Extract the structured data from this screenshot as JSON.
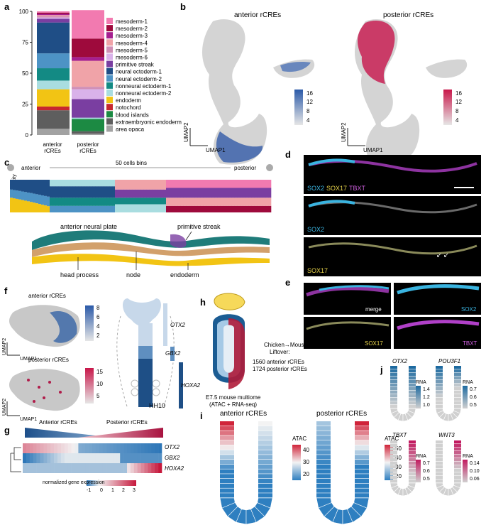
{
  "panels": {
    "a": "a",
    "b": "b",
    "c": "c",
    "d": "d",
    "e": "e",
    "f": "f",
    "g": "g",
    "h": "h",
    "i": "i",
    "j": "j"
  },
  "colors": {
    "mesoderm1": "#f27ab0",
    "mesoderm2": "#9e0a3c",
    "mesoderm3": "#a51f8f",
    "mesoderm4": "#f0a3a8",
    "mesoderm5": "#cf8fb6",
    "mesoderm6": "#d9b2ea",
    "primitive_streak": "#7a3ea1",
    "neural1": "#1f4e86",
    "neural2": "#4d93c5",
    "nonneural1": "#138a84",
    "nonneural2": "#a9dde0",
    "endoderm": "#f2c414",
    "notochord": "#c7272f",
    "blood": "#1c8a43",
    "extraembryonic": "#5e5e5e",
    "area_opaca": "#a2a2a2"
  },
  "chart_data": [
    {
      "type": "bar",
      "stacked": true,
      "categories": [
        "anterior rCREs",
        "posterior rCREs"
      ],
      "ylim": [
        0,
        100
      ],
      "yticks": [
        0,
        25,
        50,
        75,
        100
      ],
      "series": [
        {
          "name": "area opaca",
          "color": "#a2a2a2",
          "values": [
            5,
            1
          ]
        },
        {
          "name": "extraembryonic endoderm",
          "color": "#5e5e5e",
          "values": [
            15,
            2
          ]
        },
        {
          "name": "blood islands",
          "color": "#1c8a43",
          "values": [
            0,
            10
          ]
        },
        {
          "name": "notochord",
          "color": "#c7272f",
          "values": [
            3,
            0
          ]
        },
        {
          "name": "endoderm",
          "color": "#f2c414",
          "values": [
            14,
            0
          ]
        },
        {
          "name": "nonneural ectoderm-2",
          "color": "#a9dde0",
          "values": [
            7,
            1
          ]
        },
        {
          "name": "nonneural ectoderm-1",
          "color": "#138a84",
          "values": [
            10,
            0
          ]
        },
        {
          "name": "neural ectoderm-2",
          "color": "#4d93c5",
          "values": [
            12,
            0
          ]
        },
        {
          "name": "neural ectoderm-1",
          "color": "#1f4e86",
          "values": [
            25,
            0
          ]
        },
        {
          "name": "primitive streak",
          "color": "#7a3ea1",
          "values": [
            3,
            15
          ]
        },
        {
          "name": "mesoderm-6",
          "color": "#d9b2ea",
          "values": [
            1,
            8
          ]
        },
        {
          "name": "mesoderm-5",
          "color": "#cf8fb6",
          "values": [
            1,
            2
          ]
        },
        {
          "name": "mesoderm-4",
          "color": "#f0a3a8",
          "values": [
            1,
            21
          ]
        },
        {
          "name": "mesoderm-3",
          "color": "#a51f8f",
          "values": [
            1,
            3
          ]
        },
        {
          "name": "mesoderm-2",
          "color": "#9e0a3c",
          "values": [
            1,
            15
          ]
        },
        {
          "name": "mesoderm-1",
          "color": "#f27ab0",
          "values": [
            1,
            23
          ]
        }
      ]
    }
  ],
  "legend_a": [
    "mesoderm-1",
    "mesoderm-2",
    "mesoderm-3",
    "mesoderm-4",
    "mesoderm-5",
    "mesoderm-6",
    "primitive streak",
    "neural ectoderm-1",
    "neural ectoderm-2",
    "nonneural ectoderm-1",
    "nonneural ectoderm-2",
    "endoderm",
    "notochord",
    "blood islands",
    "extraembryonic endoderm",
    "area opaca"
  ],
  "xlabels_a": {
    "ant1": "anterior",
    "ant2": "rCREs",
    "post1": "posterior",
    "post2": "rCREs"
  },
  "b": {
    "title_ant": "anterior rCREs",
    "title_post": "posterior rCREs",
    "xlab": "UMAP1",
    "ylab": "UMAP2",
    "ticks_ant": [
      "16",
      "12",
      "8",
      "4"
    ],
    "ticks_post": [
      "16",
      "12",
      "8",
      "4"
    ]
  },
  "c": {
    "anterior": "anterior",
    "posterior": "posterior",
    "bins": "50 cells bins",
    "ylab": "cluster identity",
    "anp": "anterior neural plate",
    "ps": "primitive streak",
    "hp": "head process",
    "node": "node",
    "endo": "endoderm"
  },
  "d": {
    "sox2": "SOX2",
    "sox17": "SOX17",
    "tbxt": "TBXT"
  },
  "e": {
    "merge": "merge",
    "sox2": "SOX2",
    "sox17": "SOX17",
    "tbxt": "TBXT"
  },
  "f": {
    "ant": "anterior rCREs",
    "post": "posterior rCREs",
    "xlab": "UMAP1",
    "ylab": "UMAP2",
    "ticks_ant": [
      "8",
      "6",
      "4",
      "2"
    ],
    "ticks_post": [
      "15",
      "10",
      "5"
    ],
    "otx2": "OTX2",
    "gbx2": "GBX2",
    "hoxa2": "HOXA2",
    "hh10": "HH10"
  },
  "g": {
    "ant": "Anterior rCREs",
    "post": "Posterior rCREs",
    "genes": [
      "OTX2",
      "GBX2",
      "HOXA2"
    ],
    "legend_title": "normalized gene expression",
    "ticks": [
      "-1",
      "0",
      "1",
      "2",
      "3"
    ]
  },
  "h": {
    "liftover": "Chicken→Mouse",
    "liftover2": "Liftover:",
    "n_ant": "1560 anterior rCREs",
    "n_post": "1724 posterior rCREs",
    "caption1": "E7.5 mouse multiome",
    "caption2": "(ATAC + RNA-seq)"
  },
  "i": {
    "ant": "anterior rCREs",
    "post": "posterior rCREs",
    "atac": "ATAC",
    "ticks_ant": [
      "40",
      "30",
      "20"
    ],
    "ticks_post": [
      "50",
      "40",
      "30",
      "20"
    ]
  },
  "j": {
    "otx2": "OTX2",
    "pou3f1": "POU3F1",
    "tbxt": "TBXT",
    "wnt3": "WNT3",
    "rna": "RNA",
    "ticks_otx2": [
      "1.4",
      "1.2",
      "1.0"
    ],
    "ticks_pou": [
      "0.7",
      "0.6",
      "0.5"
    ],
    "ticks_tbxt": [
      "0.7",
      "0.6",
      "0.5"
    ],
    "ticks_wnt3": [
      "0.14",
      "0.10",
      "0.06"
    ]
  }
}
